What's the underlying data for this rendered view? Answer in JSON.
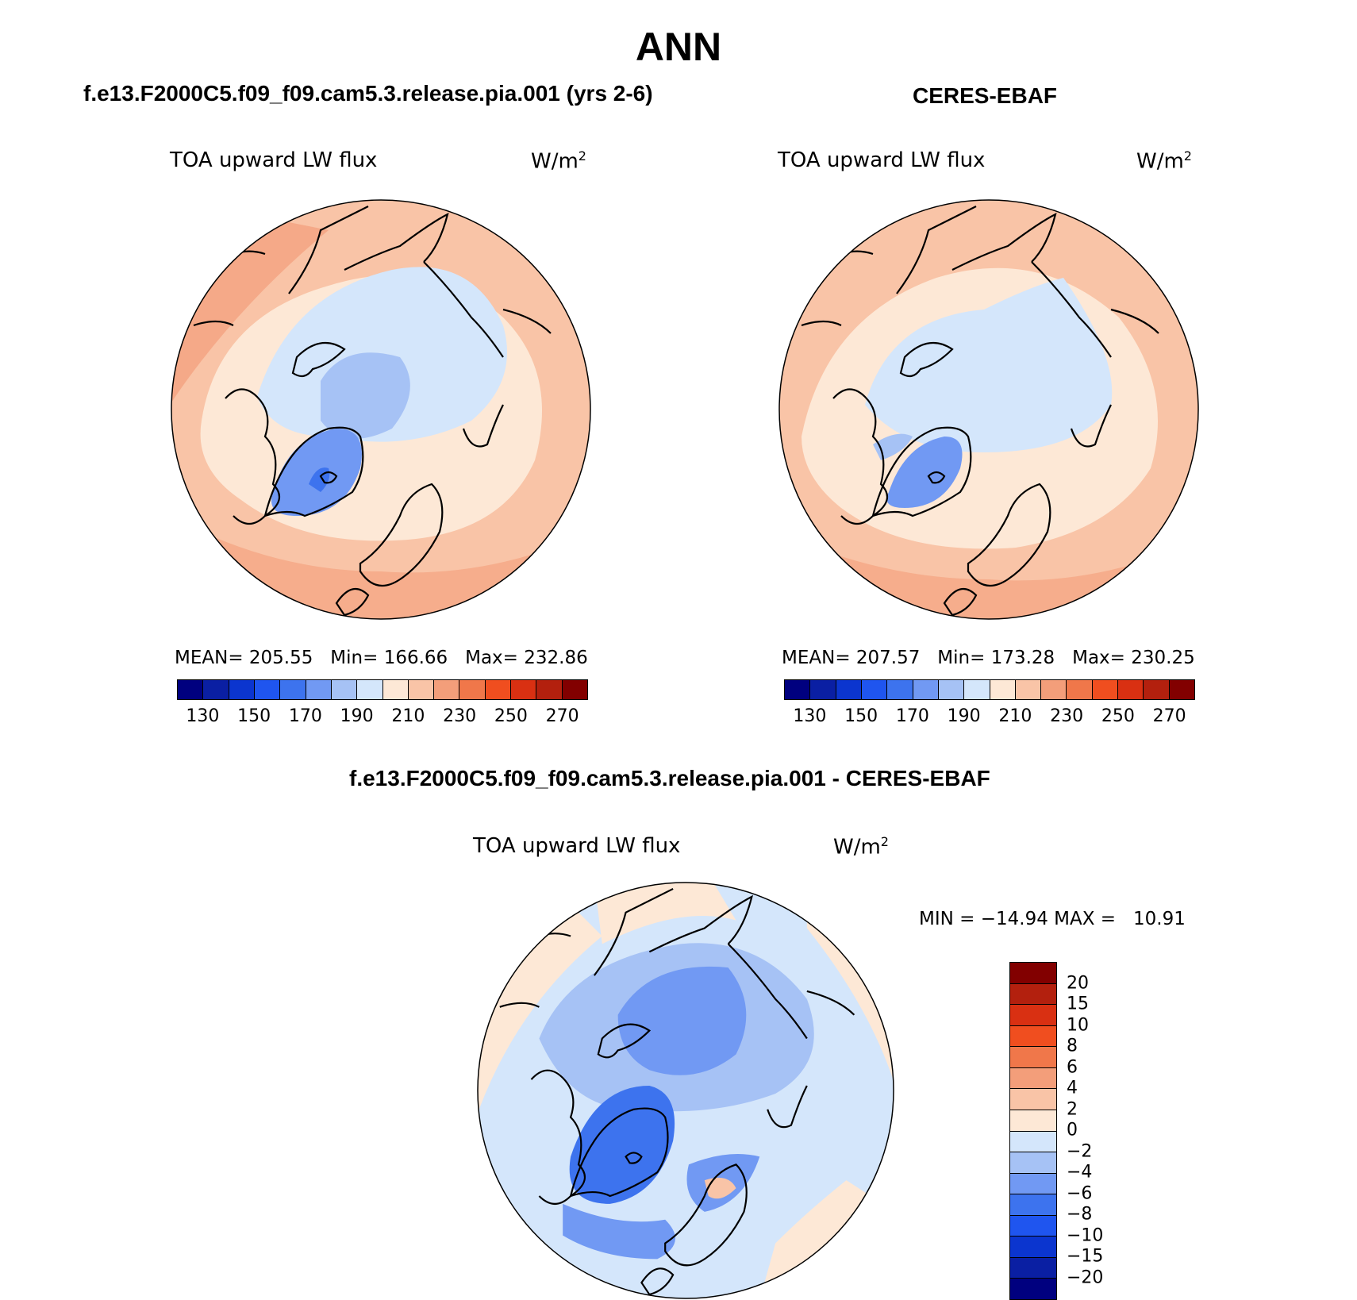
{
  "title": "ANN",
  "panels": [
    {
      "case_title": "f.e13.F2000C5.f09_f09.cam5.3.release.pia.001 (yrs 2-6)",
      "variable": "TOA upward LW flux",
      "units": "W/m",
      "units_sup": "2",
      "stats": "MEAN= 205.55   Min= 166.66   Max= 232.86"
    },
    {
      "case_title": "CERES-EBAF",
      "variable": "TOA upward LW flux",
      "units": "W/m",
      "units_sup": "2",
      "stats": "MEAN= 207.57   Min= 173.28   Max= 230.25"
    },
    {
      "case_title": "f.e13.F2000C5.f09_f09.cam5.3.release.pia.001 - CERES-EBAF",
      "variable": "TOA upward LW flux",
      "units": "W/m",
      "units_sup": "2",
      "stats": "MIN = −14.94 MAX =   10.91"
    }
  ],
  "colorbar_abs": {
    "labels": [
      "130",
      "150",
      "170",
      "190",
      "210",
      "230",
      "250",
      "270"
    ],
    "colors": [
      "#00007f",
      "#0a1fa3",
      "#0b35cf",
      "#1f55ef",
      "#3d73ee",
      "#7199f3",
      "#a6c2f5",
      "#d4e6fb",
      "#fde8d6",
      "#f9c4a7",
      "#f39e7a",
      "#f0774a",
      "#f04e1f",
      "#d93012",
      "#b3200e",
      "#820000"
    ]
  },
  "colorbar_diff": {
    "labels": [
      "20",
      "15",
      "10",
      "8",
      "6",
      "4",
      "2",
      "0",
      "−2",
      "−4",
      "−6",
      "−8",
      "−10",
      "−15",
      "−20"
    ],
    "colors": [
      "#820000",
      "#b3200e",
      "#d93012",
      "#f04e1f",
      "#f0774a",
      "#f39e7a",
      "#f9c4a7",
      "#fde8d6",
      "#d4e6fb",
      "#a6c2f5",
      "#7199f3",
      "#3d73ee",
      "#1f55ef",
      "#0b35cf",
      "#0a1fa3",
      "#00007f"
    ]
  }
}
